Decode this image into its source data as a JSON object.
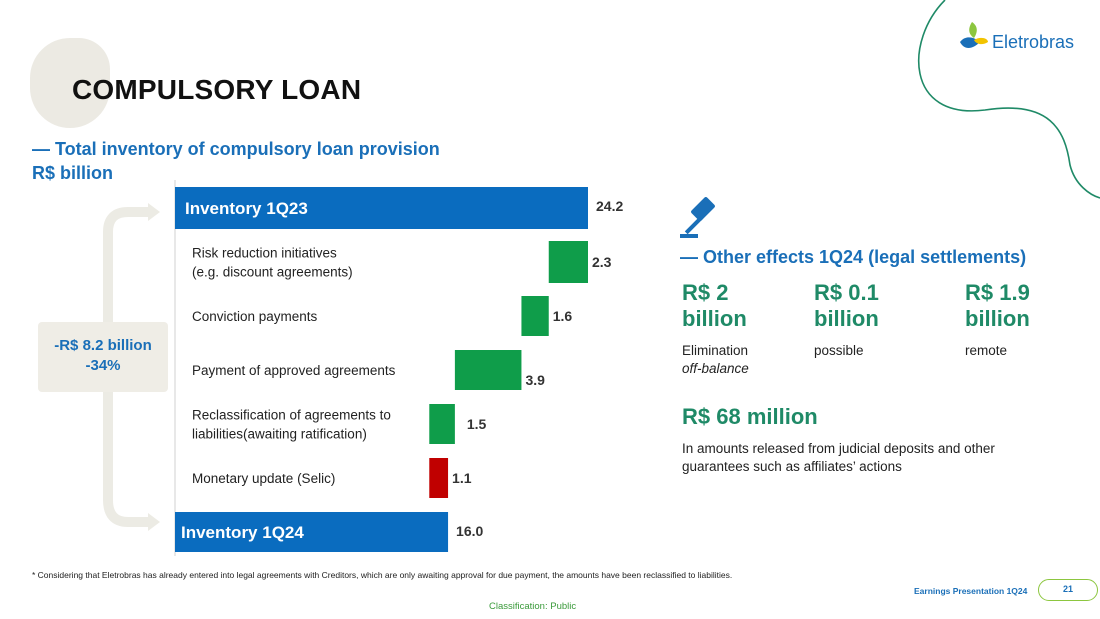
{
  "title": "COMPULSORY LOAN",
  "brand": {
    "name": "Eletrobras"
  },
  "left": {
    "subtitle": "— Total inventory of compulsory loan provision",
    "unit": "R$ billion"
  },
  "bracket": {
    "line1": "-R$ 8.2 billion",
    "line2": "-34%"
  },
  "chart_data": {
    "type": "bar",
    "orientation": "horizontal-waterfall",
    "categories": [
      "Inventory 1Q23",
      "Risk reduction initiatives (e.g. discount agreements)",
      "Conviction payments",
      "Payment of approved agreements",
      "Reclassification of agreements to liabilities(awaiting ratification)",
      "Monetary update (Selic)",
      "Inventory 1Q24"
    ],
    "label_lines": [
      [
        "Inventory 1Q23"
      ],
      [
        "Risk reduction initiatives",
        "(e.g. discount agreements)"
      ],
      [
        "Conviction payments"
      ],
      [
        "Payment of approved agreements"
      ],
      [
        "Reclassification of agreements to",
        "liabilities(awaiting ratification)"
      ],
      [
        "Monetary update (Selic)"
      ],
      [
        "Inventory 1Q24"
      ]
    ],
    "values": [
      24.2,
      -2.3,
      -1.6,
      -3.9,
      -1.5,
      1.1,
      16.0
    ],
    "value_labels": [
      "24.2",
      "2.3",
      "1.6",
      "3.9",
      "1.5",
      "1.1",
      "16.0"
    ],
    "kinds": [
      "total",
      "decrease",
      "decrease",
      "decrease",
      "decrease",
      "increase",
      "total"
    ],
    "colors": {
      "total": "#0a6cbf",
      "decrease": "#0f9d4a",
      "increase": "#c00000"
    }
  },
  "right": {
    "heading": "— Other effects 1Q24 (legal settlements)",
    "items": [
      {
        "amount_a": "R$ 2",
        "amount_b": "billion",
        "desc": "Elimination",
        "desc2": "off-balance"
      },
      {
        "amount_a": "R$ 0.1",
        "amount_b": "billion",
        "desc": "possible"
      },
      {
        "amount_a": "R$ 1.9",
        "amount_b": "billion",
        "desc": "remote"
      }
    ],
    "released": {
      "amount": "R$ 68 million",
      "desc_line1": "In amounts released from judicial deposits and other",
      "desc_line2": "guarantees such as affiliates’ actions"
    }
  },
  "footer": {
    "footnote": "* Considering that Eletrobras has already entered into legal agreements with Creditors, which are only awaiting approval for due payment, the amounts have been reclassified to liabilities.",
    "presentation": "Earnings Presentation 1Q24",
    "page": "21",
    "classification": "Classification: Public"
  }
}
